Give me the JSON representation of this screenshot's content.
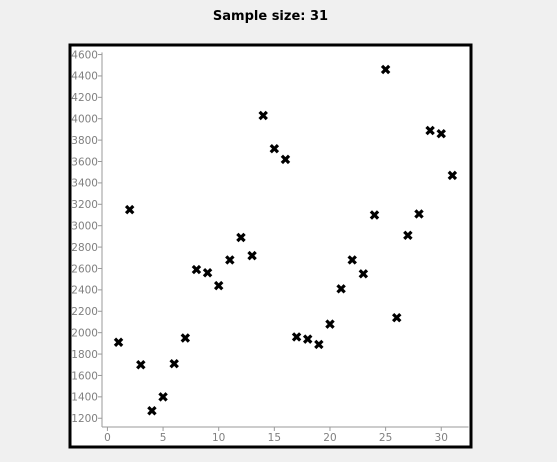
{
  "chart_data": {
    "type": "scatter",
    "title": "Sample size: 31",
    "xlabel": "",
    "ylabel": "",
    "xlim": [
      -1,
      32
    ],
    "ylim": [
      1120,
      4620
    ],
    "x_ticks": [
      0,
      5,
      10,
      15,
      20,
      25,
      30
    ],
    "y_ticks": [
      1200,
      1400,
      1600,
      1800,
      2000,
      2200,
      2400,
      2600,
      2800,
      3000,
      3200,
      3400,
      3600,
      3800,
      4000,
      4200,
      4400,
      4600
    ],
    "grid": false,
    "legend": "none",
    "marker": "x",
    "marker_color": "#000000",
    "frame_color": "#000000",
    "background_color": "#ffffff",
    "points": [
      {
        "x": 1,
        "y": 1910
      },
      {
        "x": 2,
        "y": 3150
      },
      {
        "x": 3,
        "y": 1700
      },
      {
        "x": 4,
        "y": 1270
      },
      {
        "x": 5,
        "y": 1400
      },
      {
        "x": 6,
        "y": 1710
      },
      {
        "x": 7,
        "y": 1950
      },
      {
        "x": 8,
        "y": 2590
      },
      {
        "x": 9,
        "y": 2560
      },
      {
        "x": 10,
        "y": 2440
      },
      {
        "x": 11,
        "y": 2680
      },
      {
        "x": 12,
        "y": 2890
      },
      {
        "x": 13,
        "y": 2720
      },
      {
        "x": 14,
        "y": 4030
      },
      {
        "x": 15,
        "y": 3720
      },
      {
        "x": 16,
        "y": 3620
      },
      {
        "x": 17,
        "y": 1960
      },
      {
        "x": 18,
        "y": 1940
      },
      {
        "x": 19,
        "y": 1890
      },
      {
        "x": 20,
        "y": 2080
      },
      {
        "x": 21,
        "y": 2410
      },
      {
        "x": 22,
        "y": 2680
      },
      {
        "x": 23,
        "y": 2550
      },
      {
        "x": 24,
        "y": 3100
      },
      {
        "x": 25,
        "y": 4460
      },
      {
        "x": 26,
        "y": 2140
      },
      {
        "x": 27,
        "y": 2910
      },
      {
        "x": 28,
        "y": 3110
      },
      {
        "x": 29,
        "y": 3890
      },
      {
        "x": 30,
        "y": 3860
      },
      {
        "x": 31,
        "y": 3470
      }
    ]
  }
}
